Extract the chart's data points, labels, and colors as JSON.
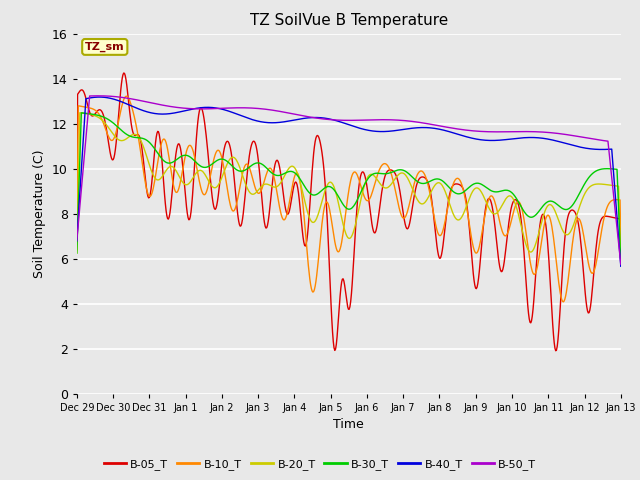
{
  "title": "TZ SoilVue B Temperature",
  "xlabel": "Time",
  "ylabel": "Soil Temperature (C)",
  "ylim": [
    0,
    16
  ],
  "yticks": [
    0,
    2,
    4,
    6,
    8,
    10,
    12,
    14,
    16
  ],
  "bg_color": "#e8e8e8",
  "annotation_text": "TZ_sm",
  "annotation_bg": "#ffffcc",
  "annotation_border": "#aaaa00",
  "series": {
    "B-05_T": {
      "color": "#dd0000",
      "lw": 1.0
    },
    "B-10_T": {
      "color": "#ff8800",
      "lw": 1.0
    },
    "B-20_T": {
      "color": "#cccc00",
      "lw": 1.0
    },
    "B-30_T": {
      "color": "#00cc00",
      "lw": 1.0
    },
    "B-40_T": {
      "color": "#0000dd",
      "lw": 1.0
    },
    "B-50_T": {
      "color": "#aa00cc",
      "lw": 1.0
    }
  },
  "num_days": 15,
  "xtick_labels": [
    "Dec 29",
    "Dec 30",
    "Dec 31",
    "Jan 1",
    "Jan 2",
    "Jan 3",
    "Jan 4",
    "Jan 5",
    "Jan 6",
    "Jan 7",
    "Jan 8",
    "Jan 9",
    "Jan 10",
    "Jan 11",
    "Jan 12",
    "Jan 13"
  ]
}
